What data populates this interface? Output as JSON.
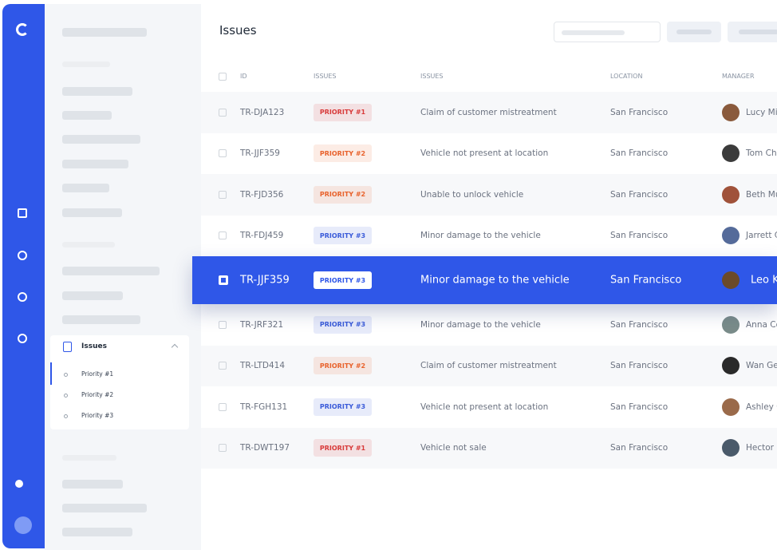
{
  "header": {
    "title": "Issues"
  },
  "sidebar": {
    "group": "Issues",
    "items": [
      "Priority #1",
      "Priority #2",
      "Priority #3"
    ]
  },
  "table": {
    "columns": [
      "ID",
      "ISSUES",
      "ISSUES",
      "LOCATION",
      "MANAGER"
    ],
    "rows": [
      {
        "id": "TR-DJA123",
        "priority": "PRIORITY #1",
        "color": "#d83a3a",
        "issue": "Claim of customer mistreatment",
        "location": "San Francisco",
        "manager": "Lucy Mil"
      },
      {
        "id": "TR-JJF359",
        "priority": "PRIORITY #2",
        "color": "#e8622c",
        "issue": "Vehicle not present at location",
        "location": "San Francisco",
        "manager": "Tom Cha"
      },
      {
        "id": "TR-FJD356",
        "priority": "PRIORITY #2",
        "color": "#e8622c",
        "issue": "Unable to unlock vehicle",
        "location": "San Francisco",
        "manager": "Beth Mu"
      },
      {
        "id": "TR-FDJ459",
        "priority": "PRIORITY #3",
        "color": "#3a5bd9",
        "issue": "Minor damage to the vehicle",
        "location": "San Francisco",
        "manager": "Jarrett C"
      },
      {
        "id": "TR-JJF359",
        "priority": "PRIORITY #3",
        "color": "#3a5bd9",
        "issue": "Minor damage to the vehicle",
        "location": "San Francisco",
        "manager": "Leo K",
        "selected": true
      },
      {
        "id": "TR-JRF321",
        "priority": "PRIORITY #3",
        "color": "#3a5bd9",
        "issue": "Minor damage to the vehicle",
        "location": "San Francisco",
        "manager": "Anna Co"
      },
      {
        "id": "TR-LTD414",
        "priority": "PRIORITY #2",
        "color": "#e8622c",
        "issue": "Claim of customer mistreatment",
        "location": "San Francisco",
        "manager": "Wan Ger"
      },
      {
        "id": "TR-FGH131",
        "priority": "PRIORITY #3",
        "color": "#3a5bd9",
        "issue": "Vehicle not present at location",
        "location": "San Francisco",
        "manager": "Ashley G"
      },
      {
        "id": "TR-DWT197",
        "priority": "PRIORITY #1",
        "color": "#d83a3a",
        "issue": "Vehicle not sale",
        "location": "San Francisco",
        "manager": "Hector M"
      }
    ]
  }
}
